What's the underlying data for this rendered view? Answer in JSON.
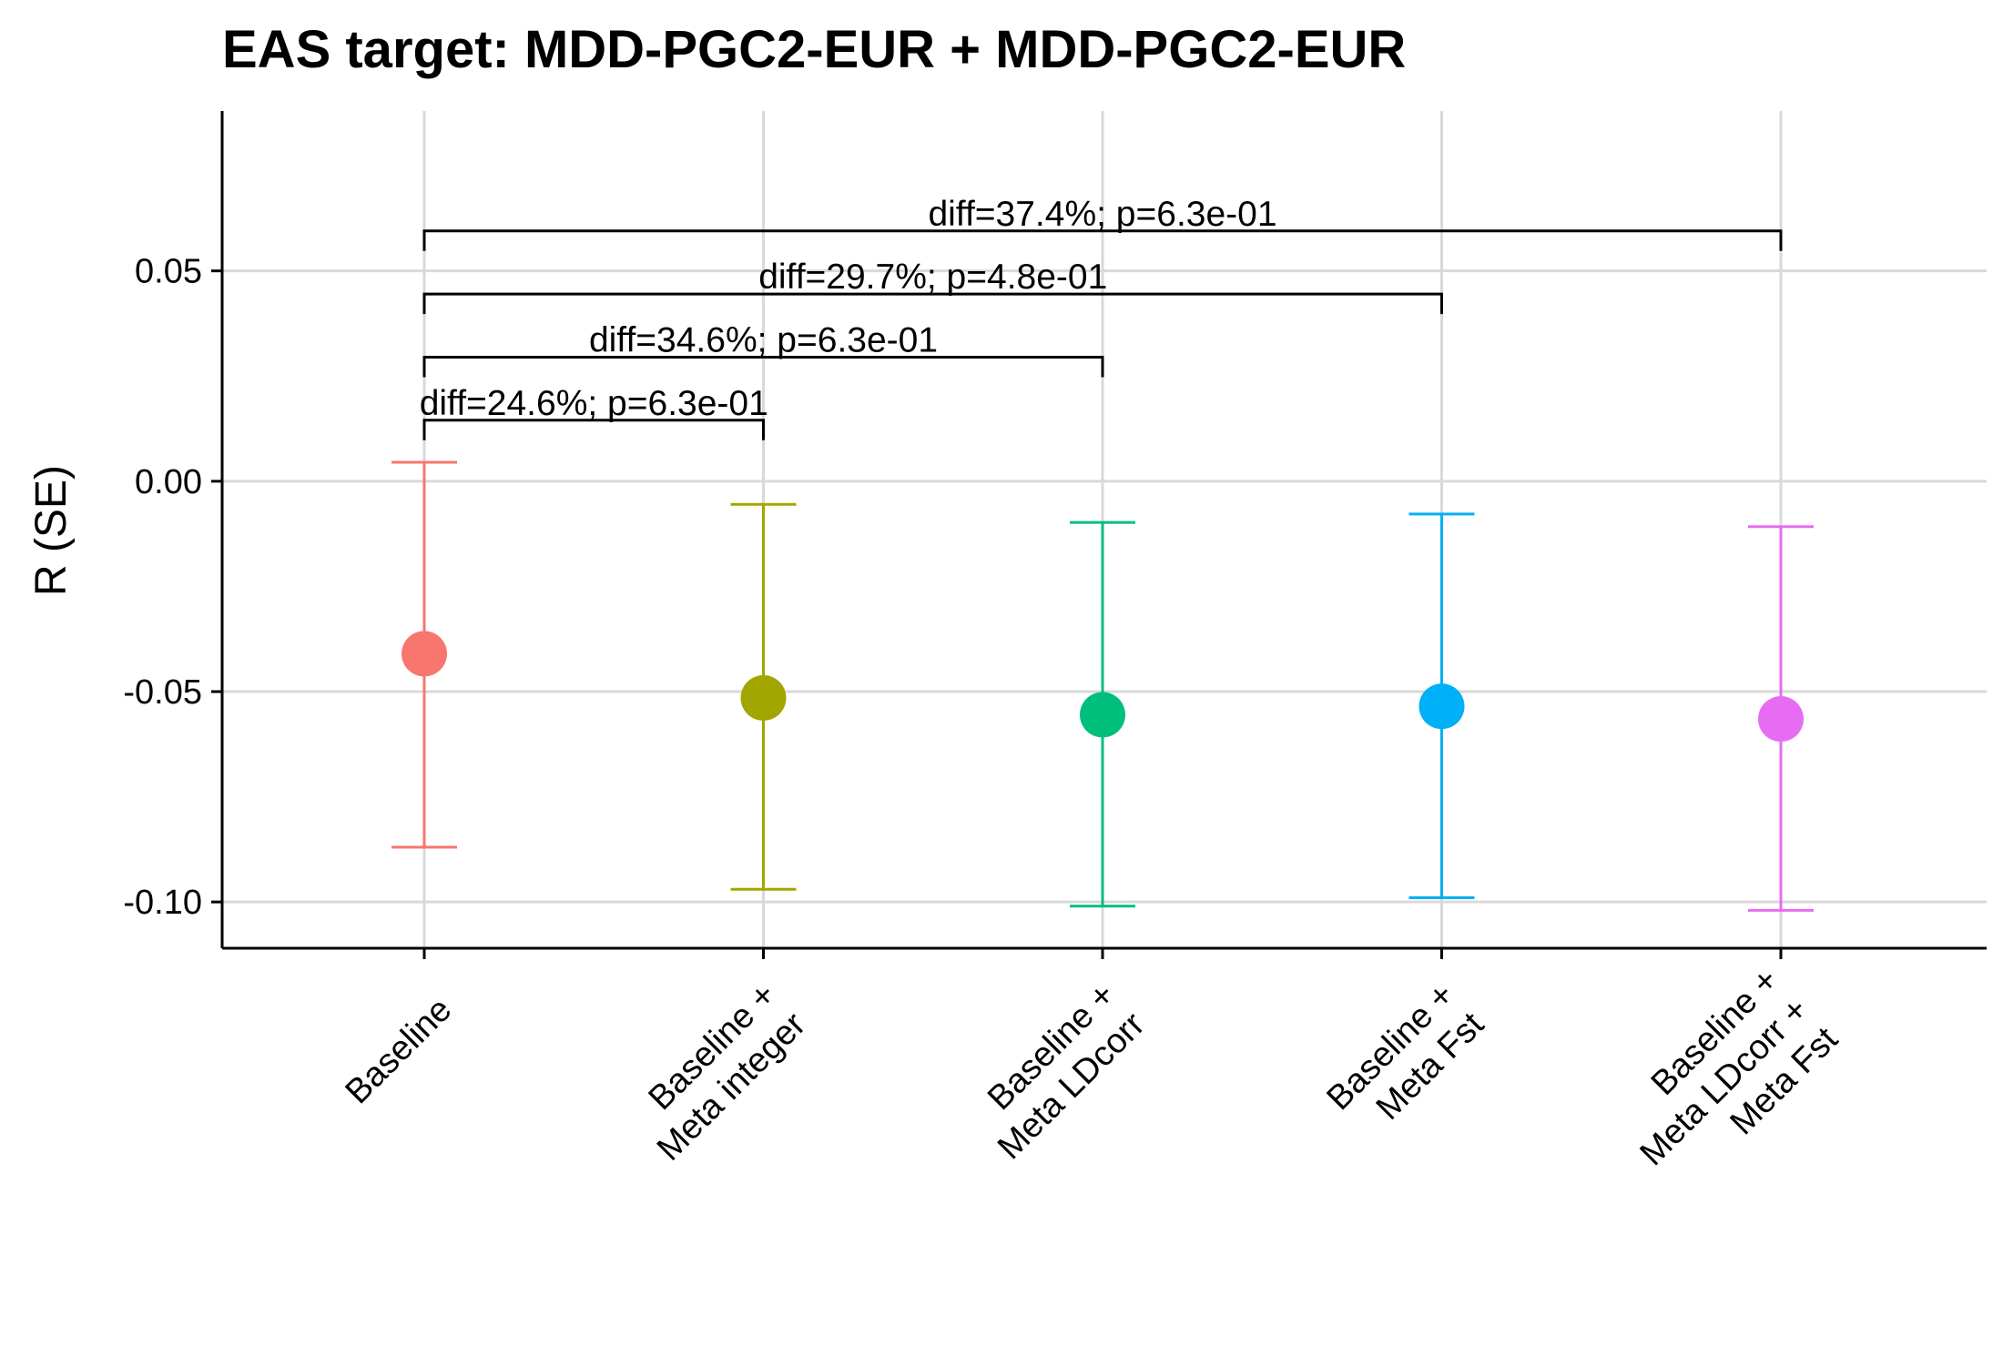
{
  "chart_data": {
    "type": "scatter",
    "title": "EAS target: MDD-PGC2-EUR + MDD-PGC2-EUR",
    "xlabel": "",
    "ylabel": "R (SE)",
    "ylim": [
      -0.111,
      0.088
    ],
    "yticks": [
      0.05,
      0.0,
      -0.05,
      -0.1
    ],
    "ytick_labels": [
      "0.05",
      "0.00",
      "-0.05",
      "-0.10"
    ],
    "grid": true,
    "legend": "none",
    "categories": [
      [
        "Baseline"
      ],
      [
        "Baseline +",
        "Meta integer"
      ],
      [
        "Baseline +",
        "Meta LDcorr"
      ],
      [
        "Baseline +",
        "Meta Fst"
      ],
      [
        "Baseline +",
        "Meta LDcorr +",
        "Meta Fst"
      ]
    ],
    "points": [
      {
        "y": -0.041,
        "lower": -0.087,
        "upper": 0.0045,
        "color": "#F8766D"
      },
      {
        "y": -0.0515,
        "lower": -0.097,
        "upper": -0.0055,
        "color": "#A3A500"
      },
      {
        "y": -0.0555,
        "lower": -0.101,
        "upper": -0.0098,
        "color": "#00BF7D"
      },
      {
        "y": -0.0535,
        "lower": -0.099,
        "upper": -0.0078,
        "color": "#00B0F6"
      },
      {
        "y": -0.0565,
        "lower": -0.102,
        "upper": -0.0108,
        "color": "#E76BF3"
      }
    ],
    "comparisons": [
      {
        "from": 0,
        "to": 1,
        "label": "diff=24.6%; p=6.3e-01",
        "y": 0.0145
      },
      {
        "from": 0,
        "to": 2,
        "label": "diff=34.6%; p=6.3e-01",
        "y": 0.0295
      },
      {
        "from": 0,
        "to": 3,
        "label": "diff=29.7%; p=4.8e-01",
        "y": 0.0445
      },
      {
        "from": 0,
        "to": 4,
        "label": "diff=37.4%; p=6.3e-01",
        "y": 0.0595
      }
    ]
  }
}
